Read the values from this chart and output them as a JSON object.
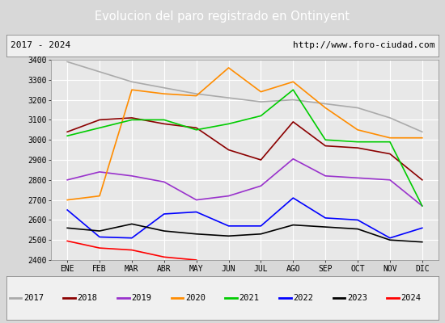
{
  "title": "Evolucion del paro registrado en Ontinyent",
  "subtitle_left": "2017 - 2024",
  "subtitle_right": "http://www.foro-ciudad.com",
  "ylim": [
    2400,
    3400
  ],
  "yticks": [
    2400,
    2500,
    2600,
    2700,
    2800,
    2900,
    3000,
    3100,
    3200,
    3300,
    3400
  ],
  "months": [
    "ENE",
    "FEB",
    "MAR",
    "ABR",
    "MAY",
    "JUN",
    "JUL",
    "AGO",
    "SEP",
    "OCT",
    "NOV",
    "DIC"
  ],
  "series": {
    "2017": {
      "color": "#aaaaaa",
      "data": [
        3390,
        3340,
        3290,
        3260,
        3230,
        3210,
        3190,
        3200,
        3180,
        3160,
        3110,
        3040
      ]
    },
    "2018": {
      "color": "#8b0000",
      "data": [
        3040,
        3100,
        3110,
        3080,
        3060,
        2950,
        2900,
        3090,
        2970,
        2960,
        2930,
        2800
      ]
    },
    "2019": {
      "color": "#9932cc",
      "data": [
        2800,
        2840,
        2820,
        2790,
        2700,
        2720,
        2770,
        2905,
        2820,
        2810,
        2800,
        2670
      ]
    },
    "2020": {
      "color": "#ff8c00",
      "data": [
        2700,
        2720,
        3250,
        3230,
        3220,
        3360,
        3240,
        3290,
        3160,
        3050,
        3010,
        3010
      ]
    },
    "2021": {
      "color": "#00cc00",
      "data": [
        3020,
        3060,
        3100,
        3100,
        3050,
        3080,
        3120,
        3250,
        3000,
        2990,
        2990,
        2670
      ]
    },
    "2022": {
      "color": "#0000ff",
      "data": [
        2650,
        2515,
        2510,
        2630,
        2640,
        2570,
        2570,
        2710,
        2610,
        2600,
        2510,
        2560
      ]
    },
    "2023": {
      "color": "#000000",
      "data": [
        2560,
        2545,
        2580,
        2545,
        2530,
        2520,
        2530,
        2575,
        2565,
        2555,
        2500,
        2490
      ]
    },
    "2024": {
      "color": "#ff0000",
      "data": [
        2495,
        2460,
        2450,
        2415,
        2400,
        null,
        null,
        null,
        null,
        null,
        null,
        null
      ]
    }
  },
  "title_bg": "#4472c4",
  "title_color": "#ffffff",
  "plot_bg": "#e8e8e8",
  "outer_bg": "#d8d8d8",
  "grid_color": "#ffffff",
  "legend_labels": [
    "2017",
    "2018",
    "2019",
    "2020",
    "2021",
    "2022",
    "2023",
    "2024"
  ]
}
